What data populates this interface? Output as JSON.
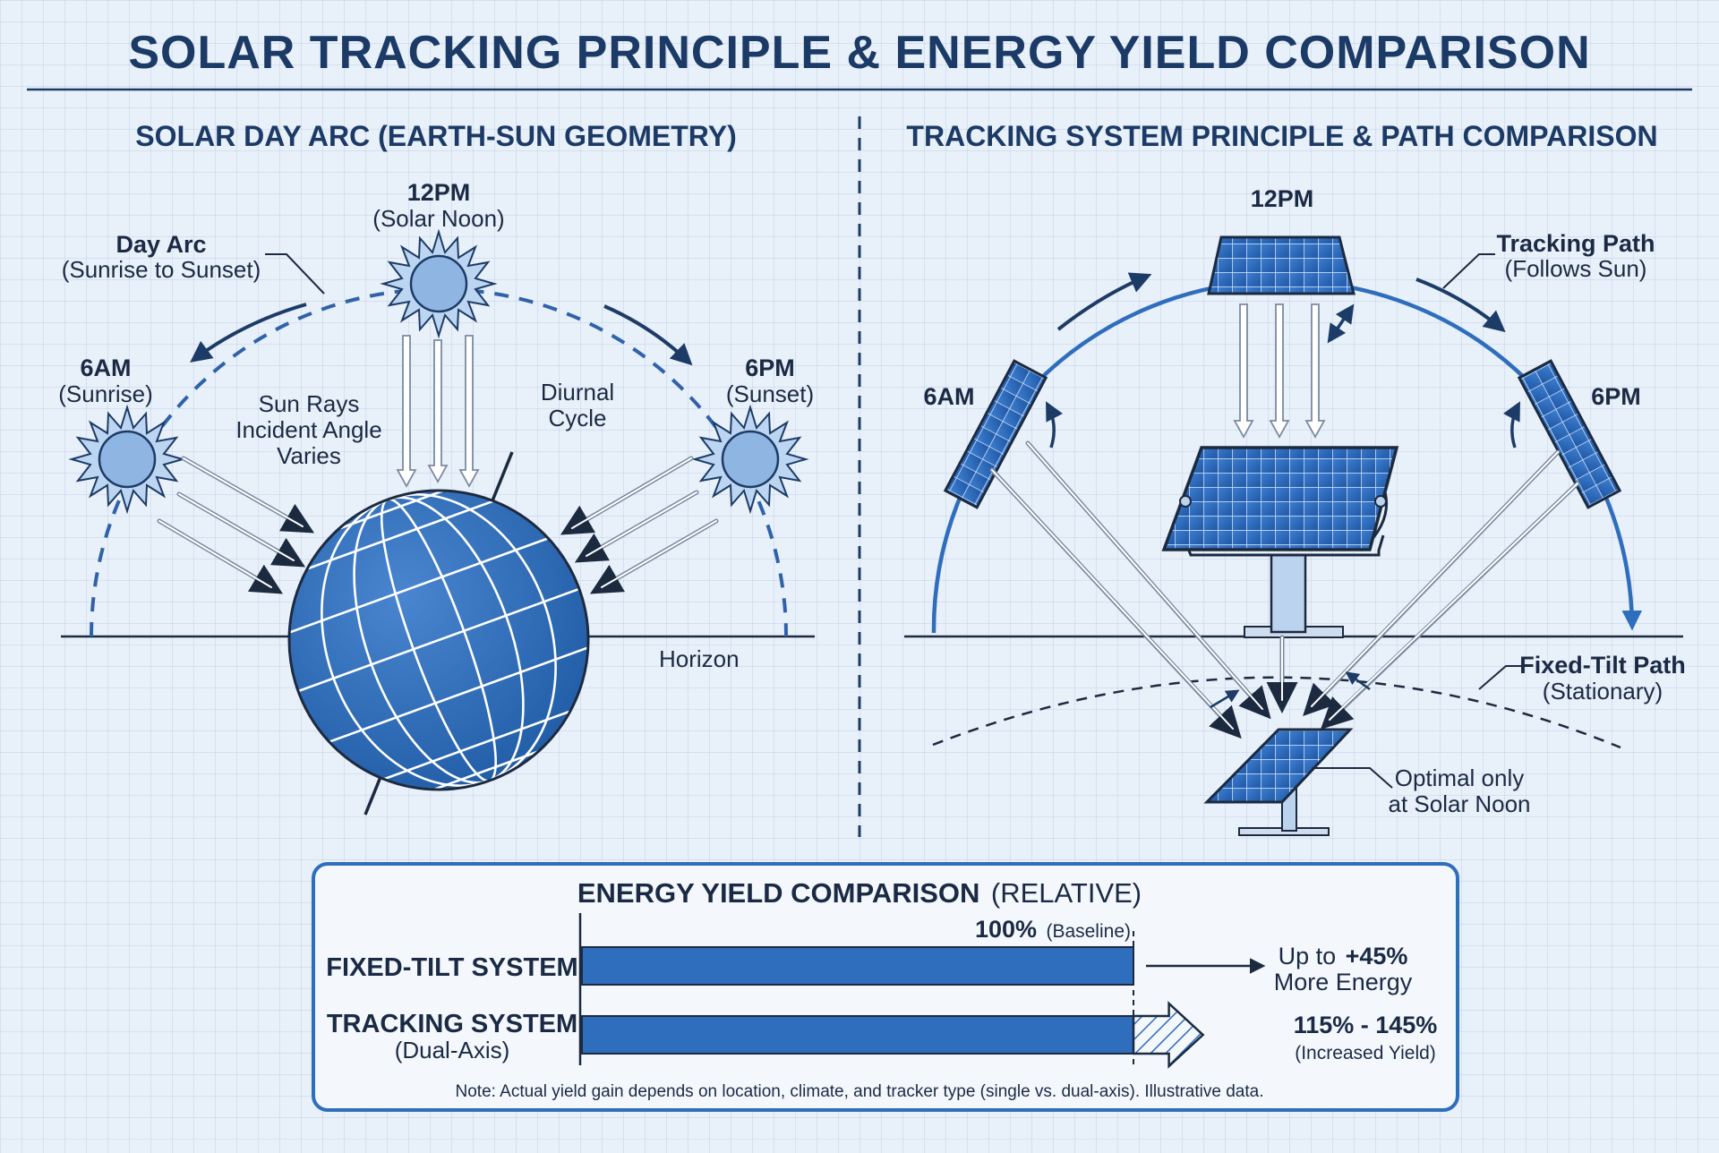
{
  "title": "SOLAR TRACKING PRINCIPLE & ENERGY YIELD COMPARISON",
  "left_panel": {
    "heading": "SOLAR DAY ARC (EARTH-SUN GEOMETRY)",
    "noon_time": "12PM",
    "noon_sub": "(Solar Noon)",
    "arc_label": "Day Arc",
    "arc_sub": "(Sunrise to Sunset)",
    "sunrise_time": "6AM",
    "sunrise_sub": "(Sunrise)",
    "sunset_time": "6PM",
    "sunset_sub": "(Sunset)",
    "rays_lines": [
      "Sun Rays",
      "Incident Angle",
      "Varies"
    ],
    "cycle_lines": [
      "Diurnal",
      "Cycle"
    ],
    "horizon": "Horizon"
  },
  "right_panel": {
    "heading": "TRACKING SYSTEM PRINCIPLE & PATH COMPARISON",
    "noon_time": "12PM",
    "morning_time": "6AM",
    "evening_time": "6PM",
    "tracking_label": "Tracking Path",
    "tracking_sub": "(Follows Sun)",
    "fixed_label": "Fixed-Tilt Path",
    "fixed_sub": "(Stationary)",
    "optimal_line1": "Optimal only",
    "optimal_line2": "at Solar Noon"
  },
  "yield": {
    "title_bold": "ENERGY YIELD COMPARISON",
    "title_rel": "(RELATIVE)",
    "fixed_name": "FIXED-TILT SYSTEM",
    "tracking_name": "TRACKING SYSTEM",
    "tracking_sub": "(Dual-Axis)",
    "baseline_value": "100%",
    "baseline_note": "(Baseline)",
    "gain_prefix": "Up to",
    "gain_value": "+45%",
    "gain_suffix": "More Energy",
    "range_value": "115% - 145%",
    "range_note": "(Increased Yield)",
    "note": "Note: Actual yield gain depends on location, climate, and tracker type (single vs. dual-axis). Illustrative data."
  },
  "chart_data": {
    "type": "bar",
    "categories": [
      "FIXED-TILT SYSTEM",
      "TRACKING SYSTEM"
    ],
    "values": [
      100,
      100
    ],
    "tracking_range": [
      115,
      145
    ],
    "max_gain_percent": 45,
    "units": "%"
  },
  "colors": {
    "title": "#1b3a66",
    "bar_fill": "#2f6dbd",
    "panel_blue": "#3f78c6",
    "background": "#e8f0f9"
  }
}
